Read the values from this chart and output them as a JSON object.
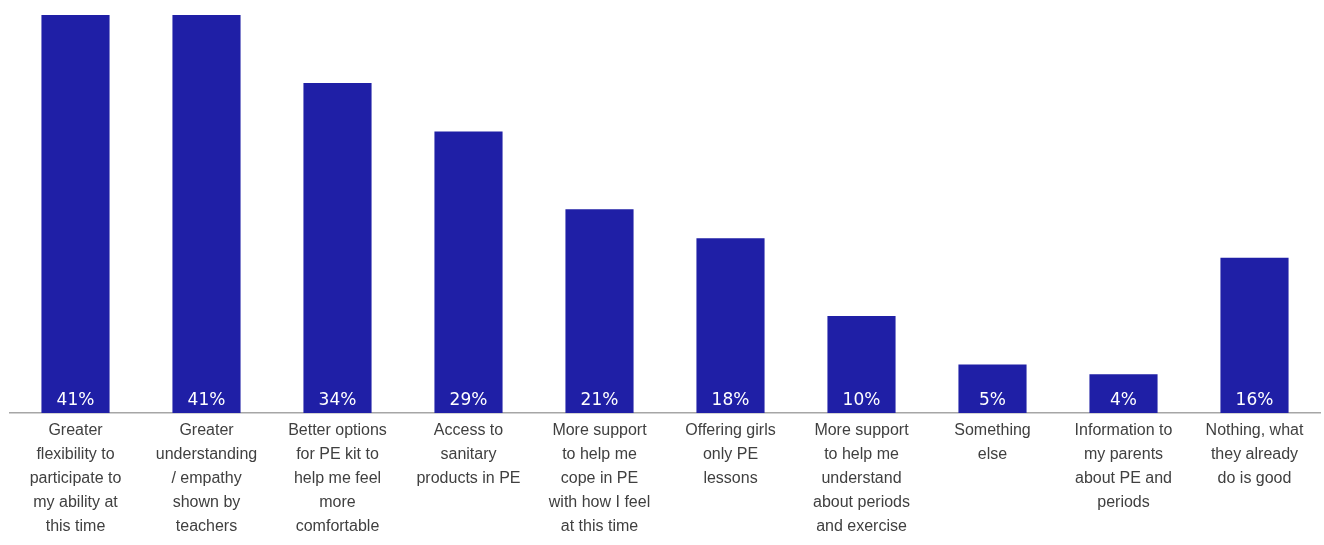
{
  "chart_data": {
    "type": "bar",
    "categories": [
      "Greater flexibility to participate to my ability at this time",
      "Greater understanding / empathy shown by teachers",
      "Better options for PE kit to help me feel more comfortable",
      "Access to sanitary products in PE",
      "More support to help me cope in PE with how I feel at this time",
      "Offering girls only PE lessons",
      "More support to help me understand about periods and exercise",
      "Something else",
      "Information to my parents about PE and periods",
      "Nothing, what they already do is good"
    ],
    "values": [
      41,
      41,
      34,
      29,
      21,
      18,
      10,
      5,
      4,
      16
    ],
    "value_labels": [
      "41%",
      "41%",
      "34%",
      "29%",
      "21%",
      "18%",
      "10%",
      "5%",
      "4%",
      "16%"
    ],
    "color": "#1f1fa6",
    "grid": false,
    "legend": false
  }
}
